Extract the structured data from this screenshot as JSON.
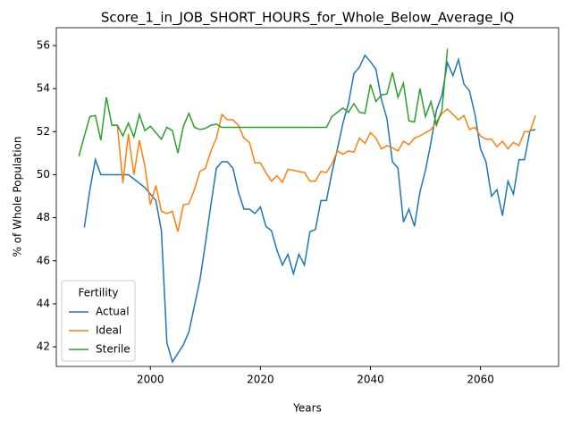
{
  "chart_data": {
    "type": "line",
    "title": "Score_1_in_JOB_SHORT_HOURS_for_Whole_Below_Average_IQ",
    "x_label": "Years",
    "y_label": "% of Whole Population",
    "x": [
      1987,
      1988,
      1989,
      1990,
      1991,
      1992,
      1993,
      1994,
      1995,
      1996,
      1997,
      1998,
      1999,
      2000,
      2001,
      2002,
      2003,
      2004,
      2005,
      2006,
      2007,
      2008,
      2009,
      2010,
      2011,
      2012,
      2013,
      2014,
      2015,
      2016,
      2017,
      2018,
      2019,
      2020,
      2021,
      2022,
      2023,
      2024,
      2025,
      2026,
      2027,
      2028,
      2029,
      2030,
      2031,
      2032,
      2033,
      2034,
      2035,
      2036,
      2037,
      2038,
      2039,
      2040,
      2041,
      2042,
      2043,
      2044,
      2045,
      2046,
      2047,
      2048,
      2049,
      2050,
      2051,
      2052,
      2053,
      2054,
      2055,
      2056,
      2057,
      2058,
      2059,
      2060,
      2061,
      2062,
      2063,
      2064,
      2065,
      2066,
      2067,
      2068,
      2069,
      2070
    ],
    "series": [
      {
        "name": "Actual",
        "color": "#1f77b4",
        "values": [
          null,
          47.55,
          49.3,
          50.7,
          50.0,
          50.0,
          50.0,
          50.0,
          50.0,
          50.0,
          49.8,
          49.6,
          49.4,
          49.1,
          48.8,
          47.4,
          42.2,
          41.3,
          41.7,
          42.1,
          42.7,
          43.9,
          45.1,
          46.8,
          48.6,
          50.3,
          50.6,
          50.6,
          50.3,
          49.2,
          48.4,
          48.4,
          48.2,
          48.5,
          47.6,
          47.4,
          46.5,
          45.8,
          46.3,
          45.4,
          46.3,
          45.8,
          47.35,
          47.45,
          48.8,
          48.8,
          50.1,
          51.2,
          52.4,
          53.3,
          54.7,
          55.0,
          55.55,
          55.25,
          54.9,
          53.5,
          52.6,
          50.6,
          50.3,
          47.8,
          48.4,
          47.6,
          49.2,
          50.2,
          51.5,
          53.0,
          53.7,
          55.2,
          54.6,
          55.35,
          54.2,
          53.9,
          52.8,
          51.2,
          50.6,
          49.0,
          49.3,
          48.1,
          49.7,
          49.1,
          50.7,
          50.7,
          52.05,
          52.1
        ]
      },
      {
        "name": "Ideal",
        "color": "#ff7f0e",
        "values": [
          null,
          null,
          null,
          null,
          null,
          null,
          52.3,
          52.3,
          49.6,
          51.9,
          50.0,
          51.6,
          50.4,
          48.6,
          49.5,
          48.3,
          48.2,
          48.3,
          47.35,
          48.6,
          48.65,
          49.3,
          50.15,
          50.3,
          51.1,
          51.7,
          52.8,
          52.55,
          52.55,
          52.3,
          51.7,
          51.5,
          50.55,
          50.55,
          50.1,
          49.7,
          49.95,
          49.65,
          50.25,
          50.2,
          50.15,
          50.1,
          49.7,
          49.7,
          50.15,
          50.1,
          50.5,
          51.1,
          50.95,
          51.1,
          51.05,
          51.7,
          51.45,
          51.95,
          51.7,
          51.2,
          51.35,
          51.25,
          51.1,
          51.55,
          51.4,
          51.7,
          51.8,
          51.95,
          52.1,
          52.45,
          52.85,
          53.05,
          52.8,
          52.55,
          52.75,
          52.1,
          52.2,
          51.8,
          51.65,
          51.65,
          51.3,
          51.55,
          51.2,
          51.5,
          51.35,
          52.0,
          52.0,
          52.75
        ]
      },
      {
        "name": "Sterile",
        "color": "#2ca02c",
        "values": [
          50.85,
          51.8,
          52.7,
          52.75,
          51.6,
          53.6,
          52.3,
          52.3,
          51.8,
          52.4,
          51.75,
          52.8,
          52.05,
          52.25,
          51.95,
          51.65,
          52.2,
          52.05,
          51.0,
          52.25,
          52.85,
          52.2,
          52.1,
          52.15,
          52.3,
          52.35,
          52.2,
          52.2,
          52.2,
          52.2,
          52.2,
          52.2,
          52.2,
          52.2,
          52.2,
          52.2,
          52.2,
          52.2,
          52.2,
          52.2,
          52.2,
          52.2,
          52.2,
          52.2,
          52.2,
          52.2,
          52.7,
          52.9,
          53.1,
          52.9,
          53.3,
          52.9,
          52.85,
          54.2,
          53.4,
          53.7,
          53.75,
          54.75,
          53.6,
          54.25,
          52.5,
          52.45,
          54.0,
          52.7,
          53.4,
          52.3,
          53.0,
          55.85,
          null,
          null,
          null,
          null,
          null,
          null,
          null,
          null,
          null,
          null,
          null,
          null,
          null,
          null,
          null,
          null
        ]
      }
    ],
    "xlim": [
      1982.9,
      2074.2
    ],
    "ylim": [
      41.09,
      56.83
    ],
    "xticks": [
      2000,
      2020,
      2040,
      2060
    ],
    "yticks": [
      42,
      44,
      46,
      48,
      50,
      52,
      54,
      56
    ],
    "legend_title": "Fertility",
    "legend": "lower left"
  }
}
